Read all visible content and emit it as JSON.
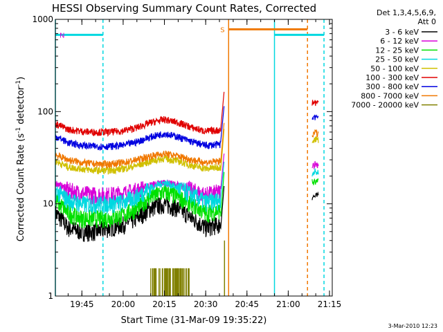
{
  "chart_data": {
    "type": "line",
    "title": "HESSI Observing Summary Count Rates, Corrected",
    "xlabel": "Start Time (31-Mar-09 19:35:22)",
    "ylabel_main": "Corrected Count Rate (s",
    "ylabel_sup1": "-1",
    "ylabel_mid": " detector",
    "ylabel_sup2": "-1",
    "ylabel_end": ")",
    "y_scale": "log",
    "ylim": [
      1,
      1000
    ],
    "xlim": [
      "19:35:22",
      "21:16:00"
    ],
    "x_ticks": [
      {
        "t": "19:45",
        "label": "19:45"
      },
      {
        "t": "20:00",
        "label": "20:00"
      },
      {
        "t": "20:15",
        "label": "20:15"
      },
      {
        "t": "20:30",
        "label": "20:30"
      },
      {
        "t": "20:45",
        "label": "20:45"
      },
      {
        "t": "21:00",
        "label": "21:00"
      },
      {
        "t": "21:15",
        "label": "21:15"
      }
    ],
    "y_ticks": [
      {
        "v": 1,
        "label": "1"
      },
      {
        "v": 10,
        "label": "10"
      },
      {
        "v": 100,
        "label": "100"
      },
      {
        "v": 1000,
        "label": "1000"
      }
    ],
    "legend_header": [
      "Det 1,3,4,5,6,9,",
      "Att 0"
    ],
    "legend_position": "right",
    "series": [
      {
        "name": "3 - 6 keV",
        "color": "#000000",
        "points": [
          [
            "19:35:22",
            8
          ],
          [
            "19:40",
            5.5
          ],
          [
            "19:45",
            5
          ],
          [
            "19:50",
            5
          ],
          [
            "19:55",
            5.5
          ],
          [
            "20:00",
            6
          ],
          [
            "20:05",
            7
          ],
          [
            "20:10",
            9
          ],
          [
            "20:15",
            10
          ],
          [
            "20:20",
            9
          ],
          [
            "20:25",
            7
          ],
          [
            "20:30",
            5.5
          ],
          [
            "20:35",
            6
          ]
        ]
      },
      {
        "name": "6 - 12 keV",
        "color": "#d800d8",
        "points": [
          [
            "19:35:22",
            17
          ],
          [
            "19:40",
            14
          ],
          [
            "19:45",
            13
          ],
          [
            "19:50",
            12.5
          ],
          [
            "19:55",
            12.5
          ],
          [
            "20:00",
            13
          ],
          [
            "20:05",
            14
          ],
          [
            "20:10",
            16
          ],
          [
            "20:15",
            17
          ],
          [
            "20:20",
            16
          ],
          [
            "20:25",
            14
          ],
          [
            "20:30",
            12.5
          ],
          [
            "20:35",
            13.5
          ]
        ]
      },
      {
        "name": "12 - 25 keV",
        "color": "#00e000",
        "points": [
          [
            "19:35:22",
            11
          ],
          [
            "19:40",
            8
          ],
          [
            "19:45",
            7
          ],
          [
            "19:50",
            7
          ],
          [
            "19:55",
            7
          ],
          [
            "20:00",
            7.5
          ],
          [
            "20:05",
            9
          ],
          [
            "20:10",
            12
          ],
          [
            "20:15",
            13.5
          ],
          [
            "20:20",
            12
          ],
          [
            "20:25",
            10
          ],
          [
            "20:30",
            8
          ],
          [
            "20:35",
            8.5
          ]
        ]
      },
      {
        "name": "25 - 50 keV",
        "color": "#00d8e0",
        "points": [
          [
            "19:35:22",
            14
          ],
          [
            "19:40",
            11
          ],
          [
            "19:45",
            10
          ],
          [
            "19:50",
            10
          ],
          [
            "19:55",
            10
          ],
          [
            "20:00",
            10.5
          ],
          [
            "20:05",
            12
          ],
          [
            "20:10",
            15
          ],
          [
            "20:15",
            17
          ],
          [
            "20:20",
            15
          ],
          [
            "20:25",
            12.5
          ],
          [
            "20:30",
            10.5
          ],
          [
            "20:35",
            11
          ]
        ]
      },
      {
        "name": "50 - 100 keV",
        "color": "#d0c000",
        "points": [
          [
            "19:35:22",
            29
          ],
          [
            "19:40",
            25
          ],
          [
            "19:45",
            24
          ],
          [
            "19:50",
            23
          ],
          [
            "19:55",
            23
          ],
          [
            "20:00",
            24
          ],
          [
            "20:05",
            26
          ],
          [
            "20:10",
            29
          ],
          [
            "20:15",
            31
          ],
          [
            "20:20",
            29
          ],
          [
            "20:25",
            26
          ],
          [
            "20:30",
            24
          ],
          [
            "20:35",
            25
          ]
        ]
      },
      {
        "name": "100 - 300 keV",
        "color": "#e00000",
        "points": [
          [
            "19:35:22",
            74
          ],
          [
            "19:40",
            64
          ],
          [
            "19:45",
            61
          ],
          [
            "19:50",
            60
          ],
          [
            "19:55",
            60
          ],
          [
            "20:00",
            62
          ],
          [
            "20:05",
            67
          ],
          [
            "20:10",
            76
          ],
          [
            "20:15",
            82
          ],
          [
            "20:20",
            76
          ],
          [
            "20:25",
            67
          ],
          [
            "20:30",
            61
          ],
          [
            "20:35",
            63
          ]
        ]
      },
      {
        "name": "300 - 800 keV",
        "color": "#0000e0",
        "points": [
          [
            "19:35:22",
            54
          ],
          [
            "19:40",
            46
          ],
          [
            "19:45",
            43
          ],
          [
            "19:50",
            42
          ],
          [
            "19:55",
            42
          ],
          [
            "20:00",
            43
          ],
          [
            "20:05",
            47
          ],
          [
            "20:10",
            53
          ],
          [
            "20:15",
            58
          ],
          [
            "20:20",
            53
          ],
          [
            "20:25",
            47
          ],
          [
            "20:30",
            43
          ],
          [
            "20:35",
            44
          ]
        ]
      },
      {
        "name": "800 - 7000 keV",
        "color": "#f07800",
        "points": [
          [
            "19:35:22",
            34
          ],
          [
            "19:40",
            30
          ],
          [
            "19:45",
            28
          ],
          [
            "19:50",
            27
          ],
          [
            "19:55",
            27
          ],
          [
            "20:00",
            28
          ],
          [
            "20:05",
            30
          ],
          [
            "20:10",
            33
          ],
          [
            "20:15",
            35
          ],
          [
            "20:20",
            33
          ],
          [
            "20:25",
            30
          ],
          [
            "20:30",
            28
          ],
          [
            "20:35",
            29
          ]
        ]
      },
      {
        "name": "7000 - 20000 keV",
        "color": "#808000",
        "points": []
      }
    ],
    "annotations": [
      {
        "type": "span_line",
        "label": "N",
        "label_color": "#d800d8",
        "color": "#00d8e0",
        "from": "19:35:22",
        "to": "19:52:40",
        "y": 680
      },
      {
        "type": "span_line",
        "label": "S",
        "label_color": "#f07800",
        "color": "#f07800",
        "from": "20:38:20",
        "to": "21:07:00",
        "y": 780
      },
      {
        "type": "span_line",
        "label": "",
        "label_color": "#00d8e0",
        "color": "#00d8e0",
        "from": "20:55:00",
        "to": "21:13:00",
        "y": 680
      }
    ],
    "stamp": "3-Mar-2010 12:23"
  },
  "colors": {
    "cyan": "#00d8e0",
    "orange": "#f07800",
    "olive": "#808000"
  }
}
